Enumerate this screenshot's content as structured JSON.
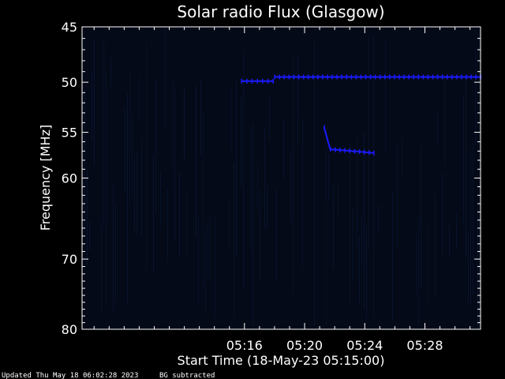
{
  "chart_data": {
    "type": "heatmap",
    "title": "Solar radio Flux (Glasgow)",
    "xlabel": "Start Time (18-May-23 05:15:00)",
    "ylabel": "Frequency [MHz]",
    "x_range_minutes": [
      5.2,
      31.7
    ],
    "y_range_mhz": [
      45,
      80
    ],
    "y_scale": "log",
    "x_ticks": [
      {
        "value": 16,
        "label": "05:16"
      },
      {
        "value": 20,
        "label": "05:20"
      },
      {
        "value": 24,
        "label": "05:24"
      },
      {
        "value": 28,
        "label": "05:28"
      }
    ],
    "y_ticks": [
      {
        "value": 45,
        "label": "45"
      },
      {
        "value": 50,
        "label": "50"
      },
      {
        "value": 55,
        "label": "55"
      },
      {
        "value": 60,
        "label": "60"
      },
      {
        "value": 70,
        "label": "70"
      },
      {
        "value": 80,
        "label": "80"
      }
    ],
    "signal_segments": [
      {
        "t_start": 15.8,
        "t_end": 17.9,
        "f_start": 49.9,
        "f_end": 49.9
      },
      {
        "t_start": 18.0,
        "t_end": 31.7,
        "f_start": 49.5,
        "f_end": 49.5
      },
      {
        "t_start": 21.3,
        "t_end": 21.7,
        "f_start": 54.5,
        "f_end": 56.8
      },
      {
        "t_start": 21.7,
        "t_end": 24.6,
        "f_start": 56.8,
        "f_end": 57.2
      }
    ],
    "colors": {
      "background": "#000000",
      "plot_background": "#050a18",
      "signal": "#1a1aff",
      "text": "#ffffff"
    }
  },
  "footer": {
    "updated": "Updated Thu May 18 06:02:28 2023",
    "bg_note": "BG subtracted"
  }
}
